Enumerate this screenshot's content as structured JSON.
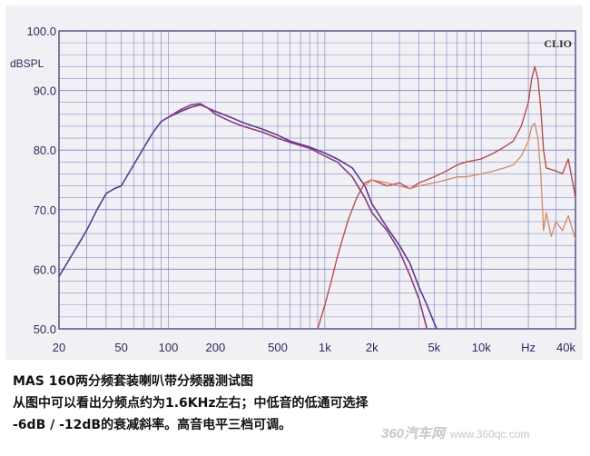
{
  "chart_data": {
    "type": "line",
    "x_scale": "log",
    "xlim": [
      20,
      40000
    ],
    "ylim": [
      50,
      100
    ],
    "ylabel": "dBSPL",
    "brand": "CLIO",
    "y_ticks": [
      {
        "value": 100,
        "label": "100.0"
      },
      {
        "value": 90,
        "label": "90.0"
      },
      {
        "value": 80,
        "label": "80.0"
      },
      {
        "value": 70,
        "label": "70.0"
      },
      {
        "value": 60,
        "label": "60.0"
      },
      {
        "value": 50,
        "label": "50.0"
      }
    ],
    "x_ticks": [
      {
        "value": 20,
        "label": "20"
      },
      {
        "value": 50,
        "label": "50"
      },
      {
        "value": 100,
        "label": "100"
      },
      {
        "value": 200,
        "label": "200"
      },
      {
        "value": 500,
        "label": "500"
      },
      {
        "value": 1000,
        "label": "1k"
      },
      {
        "value": 2000,
        "label": "2k"
      },
      {
        "value": 5000,
        "label": "5k"
      },
      {
        "value": 10000,
        "label": "10k"
      },
      {
        "value": 20000,
        "label": "Hz"
      },
      {
        "value": 40000,
        "label": "40k"
      }
    ],
    "series": [
      {
        "color": "#5a3a8c",
        "x": [
          20,
          25,
          30,
          35,
          40,
          45,
          50,
          60,
          70,
          80,
          90,
          100,
          120,
          140,
          160,
          180,
          200,
          250,
          300,
          400,
          500,
          600,
          800,
          1000,
          1200,
          1500,
          1800,
          2000,
          2500,
          3000,
          3500,
          4000,
          4500,
          5000,
          5200
        ],
        "y": [
          58.8,
          63,
          66.5,
          70,
          72.7,
          73.5,
          74,
          77.5,
          80.5,
          83,
          84.8,
          85.5,
          86.5,
          87.2,
          87.6,
          87,
          86.5,
          85.5,
          84.6,
          83.5,
          82.5,
          81.5,
          80.5,
          79.5,
          78.5,
          77,
          74,
          71,
          67,
          64,
          61,
          57,
          54,
          51,
          50
        ]
      },
      {
        "color": "#8a3a78",
        "x": [
          100,
          120,
          140,
          160,
          180,
          200,
          250,
          300,
          400,
          500,
          600,
          800,
          1000,
          1200,
          1500,
          1800,
          2000,
          2500,
          3000,
          3500,
          4000,
          4500
        ],
        "y": [
          85.5,
          86.8,
          87.6,
          87.8,
          87,
          86,
          84.8,
          84,
          83,
          82,
          81.3,
          80.3,
          79,
          78,
          75.5,
          72,
          69.5,
          66.5,
          63,
          59,
          55,
          50
        ]
      },
      {
        "color": "#b24444",
        "x": [
          900,
          1000,
          1100,
          1200,
          1400,
          1600,
          1800,
          2000,
          2500,
          3000,
          3500,
          4000,
          5000,
          6000,
          7000,
          8000,
          10000,
          12000,
          14000,
          16000,
          18000,
          20000,
          21000,
          22000,
          23000,
          24000,
          25000,
          26000,
          30000,
          33000,
          36000,
          40000
        ],
        "y": [
          50,
          54,
          58,
          62,
          68,
          72,
          74.5,
          75,
          74,
          74.5,
          73.5,
          74.5,
          75.5,
          76.5,
          77.5,
          78,
          78.5,
          79.5,
          80.5,
          81.5,
          84,
          88,
          92,
          94,
          92,
          87,
          80,
          77,
          76.5,
          76,
          78.5,
          72
        ]
      },
      {
        "color": "#d48a66",
        "x": [
          1800,
          2000,
          2500,
          3000,
          3500,
          4000,
          5000,
          6000,
          7000,
          8000,
          10000,
          12000,
          14000,
          16000,
          18000,
          20000,
          21000,
          22000,
          23000,
          24000,
          25000,
          26000,
          28000,
          30000,
          33000,
          36000,
          40000
        ],
        "y": [
          74,
          75,
          74.5,
          74,
          73.5,
          74,
          74.5,
          75,
          75.5,
          75.5,
          76,
          76.5,
          77,
          77.5,
          79,
          81.5,
          84,
          84.5,
          82,
          76,
          66.5,
          69.5,
          65.5,
          68,
          66.5,
          69,
          65
        ]
      }
    ]
  },
  "caption": {
    "line1": "MAS 160两分频套装喇叭带分频器测试图",
    "line2": "从图中可以看出分频点约为1.6KHz左右；中低音的低通可选择",
    "line3": "-6dB / -12dB的衰减斜率。高音电平三档可调。"
  },
  "watermark": {
    "brand": "360汽车网",
    "url": "www.360qc.com"
  },
  "colors": {
    "grid": "#8c8cc8",
    "frame": "#4a4a7a",
    "plot_bg": "#f1f1f5"
  }
}
